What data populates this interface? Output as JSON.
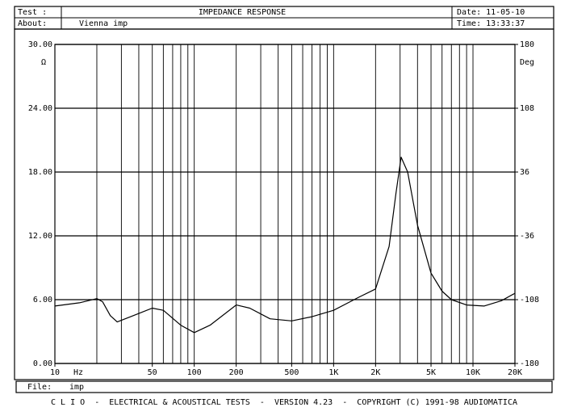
{
  "header": {
    "test_label": "Test :",
    "title": "IMPEDANCE RESPONSE",
    "date": "Date: 11-05-10",
    "about_label": "About:",
    "about": "Vienna imp",
    "time": "Time: 13:33:37"
  },
  "chart_data": {
    "type": "line",
    "log_x": true,
    "x": [
      10,
      15,
      20,
      22,
      25,
      28,
      35,
      50,
      60,
      80,
      100,
      130,
      200,
      250,
      350,
      500,
      700,
      1000,
      1500,
      2000,
      2500,
      2800,
      3050,
      3400,
      4000,
      5000,
      6000,
      7000,
      9000,
      12000,
      16000,
      20000
    ],
    "values": [
      5.4,
      5.7,
      6.1,
      5.8,
      4.5,
      3.9,
      4.4,
      5.2,
      5.0,
      3.6,
      2.9,
      3.6,
      5.5,
      5.2,
      4.2,
      4.0,
      4.4,
      5.0,
      6.2,
      7.0,
      11,
      16,
      19.4,
      18,
      13,
      8.5,
      6.8,
      6.0,
      5.5,
      5.4,
      5.9,
      6.6
    ],
    "color": "#000000",
    "xlim": [
      10,
      20000
    ],
    "xticks": [
      10,
      50,
      100,
      200,
      500,
      {
        "value": 1000,
        "label": "1K"
      },
      {
        "value": 2000,
        "label": "2K"
      },
      {
        "value": 5000,
        "label": "5K"
      },
      {
        "value": 10000,
        "label": "10K"
      },
      {
        "value": 20000,
        "label": "20K"
      }
    ],
    "xgrid": [
      20,
      30,
      40,
      50,
      60,
      70,
      80,
      90,
      100,
      200,
      300,
      400,
      500,
      600,
      700,
      800,
      900,
      1000,
      2000,
      3000,
      4000,
      5000,
      6000,
      7000,
      8000,
      9000,
      10000
    ],
    "x_unit": "Hz",
    "ylim": [
      0,
      30
    ],
    "yticks": [
      {
        "value": 0,
        "label": "0.00"
      },
      {
        "value": 6,
        "label": "6.00"
      },
      {
        "value": 12,
        "label": "12.00"
      },
      {
        "value": 18,
        "label": "18.00"
      },
      {
        "value": 24,
        "label": "24.00"
      },
      {
        "value": 30,
        "label": "30.00"
      }
    ],
    "y_unit": "Ω",
    "y2lim": [
      -180,
      180
    ],
    "y2ticks": [
      -180,
      -108,
      -36,
      36,
      108,
      180
    ],
    "y2_unit": "Deg",
    "grid": true
  },
  "file": {
    "label": "File:",
    "value": "imp"
  },
  "footer": "C L I O  -  ELECTRICAL & ACOUSTICAL TESTS  -  VERSION 4.23  -  COPYRIGHT (C) 1991-98 AUDIOMATICA"
}
